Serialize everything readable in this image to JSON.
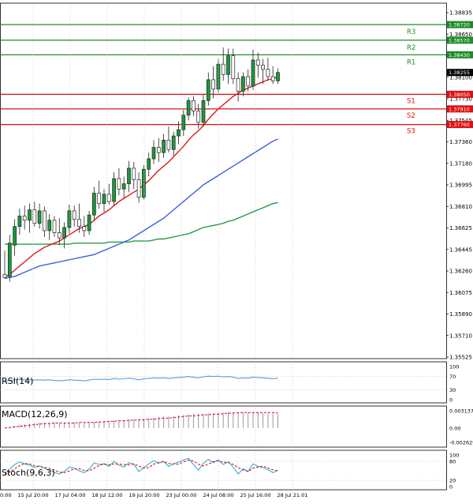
{
  "colors": {
    "background": "#ffffff",
    "candle_up": "#1a9a3a",
    "candle_down": "#d0021b",
    "resistance": "#1e8c2a",
    "support": "#e01010",
    "ma_fast": "#e01818",
    "ma_mid": "#3a62d8",
    "ma_slow": "#2a9a48",
    "rsi_line": "#5b9bd5",
    "stoch_main": "#3ab0c8",
    "stoch_signal": "#d0021b",
    "macd_hist": "#999999",
    "macd_signal": "#d0021b",
    "grid": "#c8c8c8",
    "price_tag": "#000000"
  },
  "chart_data": [
    {
      "type": "candlestick",
      "panel": "price",
      "ylim": [
        1.35525,
        1.38835
      ],
      "y_ticks": [
        "1.38835",
        "1.38650",
        "1.38465",
        "1.38100",
        "1.37730",
        "1.37545",
        "1.37360",
        "1.37180",
        "1.36995",
        "1.36810",
        "1.36625",
        "1.36445",
        "1.36260",
        "1.36075",
        "1.35890",
        "1.35710",
        "1.35525"
      ],
      "x_ticks": [
        "15 Jul 20:00",
        "17 Jul 04:00",
        "18 Jul 12:00",
        "19 Jul 20:00",
        "23 Jul 00:00",
        "24 Jul 08:00",
        "25 Jul 16:00",
        "28 Jul 21:01"
      ],
      "x_tick_partial": "0:00",
      "current_price": "1.38255",
      "levels": [
        {
          "label": "R3",
          "value": 1.3872,
          "value_text": "1.38720",
          "kind": "resistance"
        },
        {
          "label": "R2",
          "value": 1.3857,
          "value_text": "1.38570",
          "kind": "resistance"
        },
        {
          "label": "R1",
          "value": 1.3843,
          "value_text": "1.38430",
          "kind": "resistance"
        },
        {
          "label": "S1",
          "value": 1.3805,
          "value_text": "1.38050",
          "kind": "support"
        },
        {
          "label": "S2",
          "value": 1.3791,
          "value_text": "1.37910",
          "kind": "support"
        },
        {
          "label": "S3",
          "value": 1.3776,
          "value_text": "1.37760",
          "kind": "support"
        }
      ],
      "candles": [
        {
          "o": 1.3632,
          "h": 1.3655,
          "l": 1.3628,
          "c": 1.3629
        },
        {
          "o": 1.363,
          "h": 1.367,
          "l": 1.3625,
          "c": 1.3662
        },
        {
          "o": 1.366,
          "h": 1.3685,
          "l": 1.365,
          "c": 1.3678
        },
        {
          "o": 1.3678,
          "h": 1.3695,
          "l": 1.367,
          "c": 1.3688
        },
        {
          "o": 1.3688,
          "h": 1.3698,
          "l": 1.3675,
          "c": 1.3684
        },
        {
          "o": 1.3684,
          "h": 1.37,
          "l": 1.3672,
          "c": 1.3694
        },
        {
          "o": 1.3694,
          "h": 1.3702,
          "l": 1.3678,
          "c": 1.3681
        },
        {
          "o": 1.3681,
          "h": 1.37,
          "l": 1.3676,
          "c": 1.3693
        },
        {
          "o": 1.3693,
          "h": 1.3697,
          "l": 1.3668,
          "c": 1.3674
        },
        {
          "o": 1.3674,
          "h": 1.369,
          "l": 1.3665,
          "c": 1.3684
        },
        {
          "o": 1.3684,
          "h": 1.3688,
          "l": 1.3668,
          "c": 1.3672
        },
        {
          "o": 1.3672,
          "h": 1.3686,
          "l": 1.366,
          "c": 1.3667
        },
        {
          "o": 1.3667,
          "h": 1.3682,
          "l": 1.3657,
          "c": 1.3677
        },
        {
          "o": 1.3677,
          "h": 1.3699,
          "l": 1.3671,
          "c": 1.3693
        },
        {
          "o": 1.3693,
          "h": 1.3698,
          "l": 1.3678,
          "c": 1.3685
        },
        {
          "o": 1.3685,
          "h": 1.37,
          "l": 1.3672,
          "c": 1.3678
        },
        {
          "o": 1.3678,
          "h": 1.3688,
          "l": 1.3668,
          "c": 1.3674
        },
        {
          "o": 1.3674,
          "h": 1.3693,
          "l": 1.367,
          "c": 1.3689
        },
        {
          "o": 1.3689,
          "h": 1.3716,
          "l": 1.3684,
          "c": 1.371
        },
        {
          "o": 1.371,
          "h": 1.3722,
          "l": 1.3695,
          "c": 1.37
        },
        {
          "o": 1.37,
          "h": 1.3714,
          "l": 1.3692,
          "c": 1.3709
        },
        {
          "o": 1.3709,
          "h": 1.3719,
          "l": 1.3699,
          "c": 1.3702
        },
        {
          "o": 1.3702,
          "h": 1.373,
          "l": 1.3698,
          "c": 1.3724
        },
        {
          "o": 1.3724,
          "h": 1.3734,
          "l": 1.3708,
          "c": 1.3714
        },
        {
          "o": 1.3714,
          "h": 1.3726,
          "l": 1.3705,
          "c": 1.3719
        },
        {
          "o": 1.3719,
          "h": 1.3741,
          "l": 1.3711,
          "c": 1.3734
        },
        {
          "o": 1.3734,
          "h": 1.374,
          "l": 1.3714,
          "c": 1.3723
        },
        {
          "o": 1.3723,
          "h": 1.373,
          "l": 1.3701,
          "c": 1.3706
        },
        {
          "o": 1.3706,
          "h": 1.3737,
          "l": 1.3704,
          "c": 1.3733
        },
        {
          "o": 1.3733,
          "h": 1.3749,
          "l": 1.3726,
          "c": 1.3743
        },
        {
          "o": 1.3743,
          "h": 1.3761,
          "l": 1.3738,
          "c": 1.3754
        },
        {
          "o": 1.3754,
          "h": 1.3763,
          "l": 1.374,
          "c": 1.3749
        },
        {
          "o": 1.3749,
          "h": 1.3767,
          "l": 1.3744,
          "c": 1.3761
        },
        {
          "o": 1.3761,
          "h": 1.3774,
          "l": 1.3749,
          "c": 1.3752
        },
        {
          "o": 1.3752,
          "h": 1.3769,
          "l": 1.3746,
          "c": 1.3765
        },
        {
          "o": 1.3765,
          "h": 1.3779,
          "l": 1.3757,
          "c": 1.3771
        },
        {
          "o": 1.3771,
          "h": 1.379,
          "l": 1.3765,
          "c": 1.3785
        },
        {
          "o": 1.3785,
          "h": 1.3802,
          "l": 1.378,
          "c": 1.3799
        },
        {
          "o": 1.3799,
          "h": 1.3803,
          "l": 1.3784,
          "c": 1.3789
        },
        {
          "o": 1.3789,
          "h": 1.3796,
          "l": 1.3772,
          "c": 1.3778
        },
        {
          "o": 1.3778,
          "h": 1.3805,
          "l": 1.3774,
          "c": 1.3799
        },
        {
          "o": 1.3799,
          "h": 1.3826,
          "l": 1.3794,
          "c": 1.3819
        },
        {
          "o": 1.3819,
          "h": 1.3832,
          "l": 1.3801,
          "c": 1.381
        },
        {
          "o": 1.381,
          "h": 1.3839,
          "l": 1.3806,
          "c": 1.3834
        },
        {
          "o": 1.3834,
          "h": 1.385,
          "l": 1.3818,
          "c": 1.3824
        },
        {
          "o": 1.3824,
          "h": 1.3849,
          "l": 1.3815,
          "c": 1.3842
        },
        {
          "o": 1.3842,
          "h": 1.3849,
          "l": 1.3815,
          "c": 1.382
        },
        {
          "o": 1.382,
          "h": 1.3826,
          "l": 1.3798,
          "c": 1.3808
        },
        {
          "o": 1.3808,
          "h": 1.3826,
          "l": 1.3803,
          "c": 1.3822
        },
        {
          "o": 1.3822,
          "h": 1.3829,
          "l": 1.3808,
          "c": 1.3813
        },
        {
          "o": 1.3813,
          "h": 1.3848,
          "l": 1.3809,
          "c": 1.3838
        },
        {
          "o": 1.3838,
          "h": 1.3845,
          "l": 1.3821,
          "c": 1.3833
        },
        {
          "o": 1.3833,
          "h": 1.3839,
          "l": 1.3815,
          "c": 1.3829
        },
        {
          "o": 1.3829,
          "h": 1.384,
          "l": 1.3818,
          "c": 1.3822
        },
        {
          "o": 1.3822,
          "h": 1.3832,
          "l": 1.3815,
          "c": 1.3818
        },
        {
          "o": 1.3818,
          "h": 1.383,
          "l": 1.3815,
          "c": 1.3826
        }
      ],
      "ma_fast": [
        1.3629,
        1.3632,
        1.3636,
        1.364,
        1.3644,
        1.3648,
        1.3652,
        1.3655,
        1.3658,
        1.366,
        1.3662,
        1.3664,
        1.3667,
        1.367,
        1.3673,
        1.3676,
        1.3678,
        1.368,
        1.3684,
        1.3688,
        1.3691,
        1.3694,
        1.3698,
        1.3702,
        1.3705,
        1.3708,
        1.3711,
        1.3714,
        1.3718,
        1.3722,
        1.3727,
        1.3732,
        1.3736,
        1.374,
        1.3745,
        1.375,
        1.3755,
        1.3761,
        1.3766,
        1.377,
        1.3775,
        1.3781,
        1.3786,
        1.3791,
        1.3795,
        1.3799,
        1.3803,
        1.3806,
        1.3809,
        1.3811,
        1.3813,
        1.3815,
        1.3817,
        1.3819,
        1.382,
        1.3822
      ],
      "ma_mid": [
        1.3628,
        1.3629,
        1.363,
        1.3632,
        1.3634,
        1.3636,
        1.3638,
        1.364,
        1.3641,
        1.3642,
        1.3643,
        1.3644,
        1.3645,
        1.3646,
        1.3647,
        1.3648,
        1.3649,
        1.365,
        1.3651,
        1.3653,
        1.3655,
        1.3657,
        1.3659,
        1.3661,
        1.3663,
        1.3665,
        1.3668,
        1.3671,
        1.3674,
        1.3677,
        1.368,
        1.3683,
        1.3686,
        1.369,
        1.3694,
        1.3698,
        1.3702,
        1.3706,
        1.371,
        1.3714,
        1.3718,
        1.3721,
        1.3724,
        1.3727,
        1.373,
        1.3733,
        1.3736,
        1.3739,
        1.3742,
        1.3745,
        1.3748,
        1.3751,
        1.3754,
        1.3757,
        1.376,
        1.3762
      ],
      "ma_slow": [
        1.3661,
        1.3661,
        1.3661,
        1.3661,
        1.3661,
        1.3661,
        1.3661,
        1.3661,
        1.3661,
        1.3661,
        1.3661,
        1.3661,
        1.3661,
        1.3661,
        1.3662,
        1.3662,
        1.3662,
        1.3662,
        1.3662,
        1.3662,
        1.3662,
        1.3663,
        1.3663,
        1.3663,
        1.3663,
        1.3663,
        1.3664,
        1.3664,
        1.3664,
        1.3664,
        1.3665,
        1.3666,
        1.3666,
        1.3667,
        1.3668,
        1.3669,
        1.367,
        1.3671,
        1.3673,
        1.3675,
        1.3677,
        1.3678,
        1.3679,
        1.368,
        1.3681,
        1.3683,
        1.3684,
        1.3686,
        1.3688,
        1.369,
        1.3692,
        1.3694,
        1.3696,
        1.3698,
        1.37,
        1.3701
      ]
    },
    {
      "type": "line",
      "panel": "rsi",
      "label": "RSI(14)",
      "ylim": [
        0,
        100
      ],
      "y_ticks": [
        "100",
        "70",
        "30",
        "0"
      ],
      "values": [
        56,
        58,
        60,
        61,
        60,
        60,
        59,
        60,
        59,
        60,
        58,
        57,
        58,
        60,
        59,
        58,
        57,
        59,
        62,
        61,
        62,
        61,
        64,
        62,
        63,
        65,
        63,
        60,
        63,
        64,
        66,
        65,
        66,
        64,
        66,
        67,
        68,
        70,
        68,
        66,
        69,
        71,
        70,
        71,
        69,
        70,
        68,
        64,
        66,
        65,
        68,
        67,
        66,
        65,
        63,
        65
      ]
    },
    {
      "type": "bar",
      "panel": "macd",
      "label": "MACD(12,26,9)",
      "ylim": [
        -0.002629,
        0.003137
      ],
      "y_ticks": [
        "0.003137",
        "0.00",
        "-0.002629"
      ],
      "histogram": [
        0.0,
        0.0002,
        0.0004,
        0.0006,
        0.0007,
        0.0008,
        0.0009,
        0.001,
        0.001,
        0.001,
        0.001,
        0.0009,
        0.0009,
        0.001,
        0.001,
        0.001,
        0.0009,
        0.001,
        0.0011,
        0.0012,
        0.0013,
        0.0013,
        0.0014,
        0.0015,
        0.0015,
        0.0016,
        0.0016,
        0.0016,
        0.0017,
        0.0018,
        0.0019,
        0.002,
        0.0021,
        0.0021,
        0.0022,
        0.0023,
        0.0024,
        0.0025,
        0.0026,
        0.0026,
        0.0026,
        0.0027,
        0.0027,
        0.0028,
        0.0028,
        0.0029,
        0.0029,
        0.0028,
        0.0028,
        0.0028,
        0.0028,
        0.0028,
        0.0027,
        0.0027,
        0.0026,
        0.0025
      ],
      "signal": [
        0.0,
        0.0001,
        0.0002,
        0.0003,
        0.0004,
        0.0005,
        0.0006,
        0.0007,
        0.0008,
        0.0008,
        0.0009,
        0.0009,
        0.0009,
        0.0009,
        0.0009,
        0.001,
        0.001,
        0.001,
        0.001,
        0.0011,
        0.0011,
        0.0012,
        0.0012,
        0.0013,
        0.0013,
        0.0014,
        0.0014,
        0.0015,
        0.0015,
        0.0016,
        0.0016,
        0.0017,
        0.0018,
        0.0018,
        0.0019,
        0.002,
        0.0021,
        0.0022,
        0.0022,
        0.0023,
        0.0024,
        0.0024,
        0.0025,
        0.0025,
        0.0026,
        0.0027,
        0.0027,
        0.0028,
        0.0028,
        0.0028,
        0.0028,
        0.0028,
        0.0028,
        0.0028,
        0.0028,
        0.0027
      ]
    },
    {
      "type": "line",
      "panel": "stoch",
      "label": "Stoch(9,6,3)",
      "ylim": [
        0,
        100
      ],
      "y_ticks": [
        "100",
        "80",
        "20",
        "0"
      ],
      "main": [
        42,
        55,
        70,
        78,
        72,
        68,
        60,
        66,
        58,
        52,
        45,
        40,
        48,
        62,
        58,
        50,
        44,
        56,
        75,
        70,
        72,
        64,
        80,
        68,
        62,
        76,
        70,
        48,
        60,
        72,
        82,
        74,
        80,
        64,
        72,
        78,
        84,
        90,
        70,
        52,
        74,
        86,
        76,
        84,
        70,
        78,
        62,
        40,
        56,
        48,
        72,
        64,
        60,
        54,
        44,
        52
      ],
      "signal": [
        38,
        45,
        56,
        66,
        73,
        72,
        66,
        63,
        61,
        58,
        52,
        46,
        44,
        50,
        56,
        57,
        51,
        50,
        58,
        67,
        72,
        69,
        72,
        71,
        70,
        69,
        72,
        65,
        59,
        60,
        71,
        76,
        79,
        73,
        72,
        71,
        78,
        84,
        81,
        71,
        65,
        71,
        79,
        82,
        77,
        77,
        70,
        60,
        53,
        48,
        59,
        62,
        65,
        59,
        53,
        50
      ]
    }
  ]
}
